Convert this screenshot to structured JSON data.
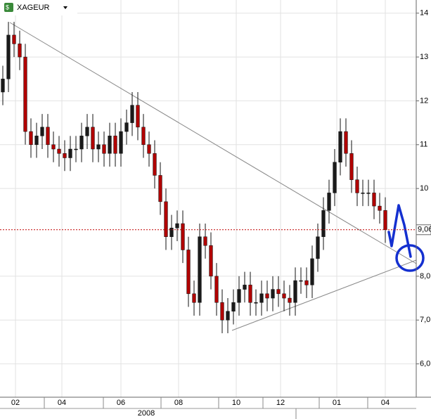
{
  "chart_data": {
    "type": "candlestick",
    "title": "XAGEUR",
    "open": [
      12.2,
      12.5,
      13.5,
      13.3,
      13.0,
      11.3,
      11.0,
      11.2,
      11.4,
      11.0,
      10.9,
      10.8,
      10.7,
      10.9,
      10.9,
      11.2,
      11.4,
      10.9,
      11.0,
      10.8,
      11.2,
      10.8,
      11.3,
      11.5,
      11.9,
      11.4,
      11.0,
      10.8,
      10.3,
      9.7,
      8.9,
      9.1,
      9.2,
      8.6,
      7.6,
      7.4,
      8.9,
      8.7,
      8.0,
      7.4,
      7.0,
      7.2,
      7.4,
      7.7,
      7.8,
      7.4,
      7.4,
      7.6,
      7.5,
      7.7,
      7.6,
      7.5,
      7.4,
      7.9,
      7.9,
      7.8,
      8.4,
      8.9,
      9.5,
      9.9,
      10.6,
      11.3,
      10.8,
      10.2,
      9.9,
      9.9,
      9.9,
      9.6,
      9.5
    ],
    "high": [
      12.8,
      13.8,
      13.8,
      13.6,
      13.3,
      11.6,
      11.5,
      11.7,
      11.7,
      11.3,
      11.2,
      11.1,
      11.2,
      11.2,
      11.5,
      11.7,
      11.7,
      11.3,
      11.3,
      11.5,
      11.5,
      11.6,
      11.8,
      12.2,
      12.2,
      11.7,
      11.3,
      11.1,
      10.6,
      10.0,
      9.4,
      9.5,
      9.5,
      8.9,
      7.9,
      9.2,
      9.2,
      9.0,
      8.3,
      7.7,
      7.5,
      7.7,
      8.0,
      8.1,
      8.1,
      7.7,
      7.9,
      7.9,
      8.0,
      8.0,
      7.9,
      7.8,
      8.2,
      8.2,
      8.2,
      8.7,
      9.2,
      9.8,
      10.2,
      10.9,
      11.6,
      11.6,
      11.1,
      10.5,
      10.2,
      10.2,
      10.2,
      9.9,
      9.8
    ],
    "low": [
      11.9,
      12.2,
      13.0,
      12.7,
      11.0,
      10.7,
      10.7,
      10.9,
      10.7,
      10.6,
      10.5,
      10.4,
      10.4,
      10.6,
      10.6,
      10.9,
      10.6,
      10.6,
      10.5,
      10.5,
      10.5,
      10.5,
      11.0,
      11.2,
      11.1,
      10.7,
      10.5,
      10.0,
      9.4,
      8.6,
      8.6,
      8.8,
      8.3,
      7.3,
      7.1,
      7.1,
      8.4,
      7.7,
      7.1,
      6.7,
      6.7,
      6.9,
      7.1,
      7.4,
      7.1,
      7.1,
      7.1,
      7.2,
      7.2,
      7.3,
      7.2,
      7.1,
      7.1,
      7.6,
      7.5,
      7.5,
      8.1,
      8.6,
      9.2,
      9.6,
      10.3,
      10.5,
      9.9,
      9.6,
      9.6,
      9.6,
      9.3,
      9.2,
      8.76
    ],
    "close": [
      12.5,
      13.5,
      13.3,
      13.0,
      11.3,
      11.0,
      11.2,
      11.4,
      11.0,
      10.9,
      10.8,
      10.7,
      10.9,
      10.9,
      11.2,
      11.4,
      10.9,
      11.0,
      10.8,
      11.2,
      10.8,
      11.3,
      11.5,
      11.9,
      11.4,
      11.0,
      10.8,
      10.3,
      9.7,
      8.9,
      9.1,
      9.2,
      8.6,
      7.6,
      7.4,
      8.9,
      8.7,
      8.0,
      7.4,
      7.0,
      7.2,
      7.4,
      7.7,
      7.8,
      7.4,
      7.4,
      7.6,
      7.5,
      7.7,
      7.6,
      7.5,
      7.4,
      7.9,
      7.9,
      7.8,
      8.4,
      8.9,
      9.5,
      9.9,
      10.6,
      11.3,
      10.8,
      10.2,
      9.9,
      9.9,
      9.9,
      9.6,
      9.5,
      9.06
    ],
    "up_color": "#1a1a1a",
    "down_color": "#b00000",
    "xlim": [
      -0.5,
      73.5
    ],
    "xticks": [
      {
        "value": 2.25,
        "label": "02"
      },
      {
        "value": 10.5,
        "label": "04"
      },
      {
        "value": 21,
        "label": "06"
      },
      {
        "value": 31.25,
        "label": "08"
      },
      {
        "value": 41.5,
        "label": "10"
      },
      {
        "value": 49.375,
        "label": "12"
      },
      {
        "value": 59.375,
        "label": "01"
      },
      {
        "value": 68,
        "label": "04"
      }
    ],
    "year_labels": [
      {
        "value": 25.5,
        "label": "2008"
      }
    ],
    "ylim": [
      5.24,
      14.3
    ],
    "yticks": [
      {
        "value": 14,
        "label": "14"
      },
      {
        "value": 13,
        "label": "13"
      },
      {
        "value": 12,
        "label": "12"
      },
      {
        "value": 11,
        "label": "11"
      },
      {
        "value": 10,
        "label": "10"
      },
      {
        "value": 8,
        "label": "8,0"
      },
      {
        "value": 7,
        "label": "7,0"
      },
      {
        "value": 6,
        "label": "6,0"
      }
    ],
    "last": {
      "value": 9.06,
      "label": "9,06"
    },
    "grid": true
  }
}
